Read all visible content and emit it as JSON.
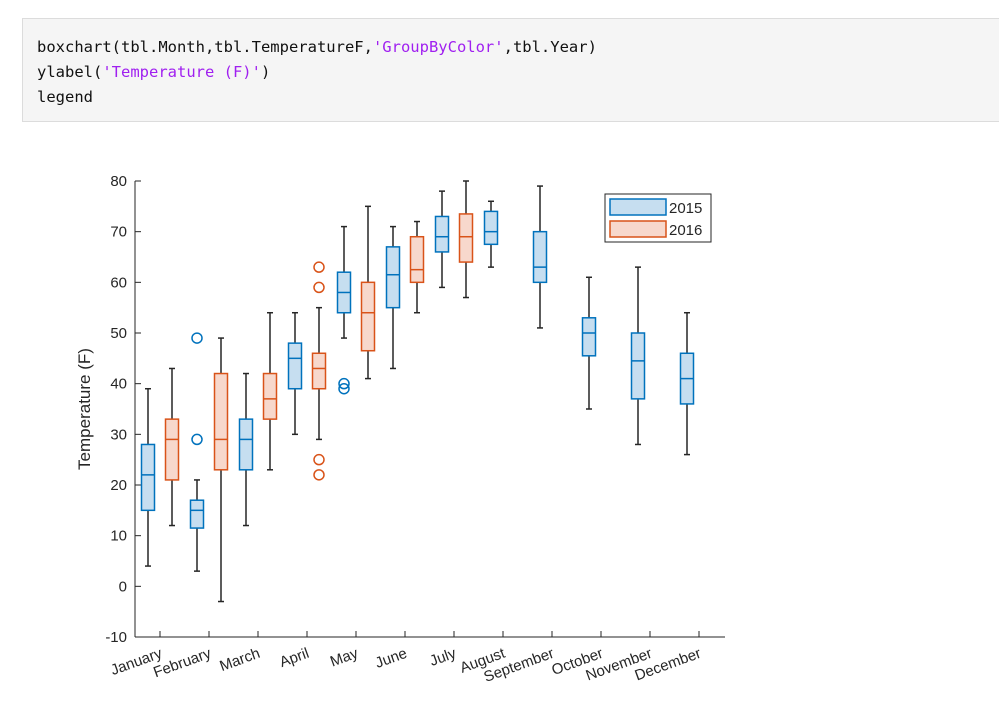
{
  "code": {
    "line1": {
      "pre": "boxchart(tbl.Month,tbl.TemperatureF,",
      "str": "'GroupByColor'",
      "post": ",tbl.Year)"
    },
    "line2": {
      "pre": "ylabel(",
      "str": "'Temperature (F)'",
      "post": ")"
    },
    "line3": "legend"
  },
  "chart_data": {
    "type": "box",
    "ylabel": "Temperature (F)",
    "xlabel": "",
    "ylim": [
      -10,
      80
    ],
    "yticks": [
      -10,
      0,
      10,
      20,
      30,
      40,
      50,
      60,
      70,
      80
    ],
    "categories": [
      "January",
      "February",
      "March",
      "April",
      "May",
      "June",
      "July",
      "August",
      "September",
      "October",
      "November",
      "December"
    ],
    "legend_position": "top-right",
    "grid": false,
    "series": [
      {
        "name": "2015",
        "color": "#0072bd",
        "fill": "#c6def0",
        "boxes": [
          {
            "min": 4,
            "q1": 15,
            "median": 22,
            "q3": 28,
            "max": 39,
            "outliers": []
          },
          {
            "min": 3,
            "q1": 11.5,
            "median": 15,
            "q3": 17,
            "max": 21,
            "outliers": [
              29,
              49
            ]
          },
          {
            "min": 12,
            "q1": 23,
            "median": 29,
            "q3": 33,
            "max": 42,
            "outliers": []
          },
          {
            "min": 30,
            "q1": 39,
            "median": 45,
            "q3": 48,
            "max": 54,
            "outliers": []
          },
          {
            "min": 49,
            "q1": 54,
            "median": 58,
            "q3": 62,
            "max": 71,
            "outliers": [
              39,
              40
            ]
          },
          {
            "min": 43,
            "q1": 55,
            "median": 61.5,
            "q3": 67,
            "max": 71,
            "outliers": []
          },
          {
            "min": 59,
            "q1": 66,
            "median": 69,
            "q3": 73,
            "max": 78,
            "outliers": []
          },
          {
            "min": 63,
            "q1": 67.5,
            "median": 70,
            "q3": 74,
            "max": 76,
            "outliers": []
          },
          {
            "min": 51,
            "q1": 60,
            "median": 63,
            "q3": 70,
            "max": 79,
            "outliers": []
          },
          {
            "min": 35,
            "q1": 45.5,
            "median": 50,
            "q3": 53,
            "max": 61,
            "outliers": []
          },
          {
            "min": 28,
            "q1": 37,
            "median": 44.5,
            "q3": 50,
            "max": 63,
            "outliers": []
          },
          {
            "min": 26,
            "q1": 36,
            "median": 41,
            "q3": 46,
            "max": 54,
            "outliers": []
          }
        ]
      },
      {
        "name": "2016",
        "color": "#d95319",
        "fill": "#f7d8cc",
        "boxes": [
          {
            "min": 12,
            "q1": 21,
            "median": 29,
            "q3": 33,
            "max": 43,
            "outliers": []
          },
          {
            "min": -3,
            "q1": 23,
            "median": 29,
            "q3": 42,
            "max": 49,
            "outliers": []
          },
          {
            "min": 23,
            "q1": 33,
            "median": 37,
            "q3": 42,
            "max": 54,
            "outliers": []
          },
          {
            "min": 29,
            "q1": 39,
            "median": 43,
            "q3": 46,
            "max": 55,
            "outliers": [
              22,
              25,
              59,
              63
            ]
          },
          {
            "min": 41,
            "q1": 46.5,
            "median": 54,
            "q3": 60,
            "max": 75,
            "outliers": []
          },
          {
            "min": 54,
            "q1": 60,
            "median": 62.5,
            "q3": 69,
            "max": 72,
            "outliers": []
          },
          {
            "min": 57,
            "q1": 64,
            "median": 69,
            "q3": 73.5,
            "max": 80,
            "outliers": []
          },
          null,
          null,
          null,
          null,
          null
        ]
      }
    ]
  }
}
